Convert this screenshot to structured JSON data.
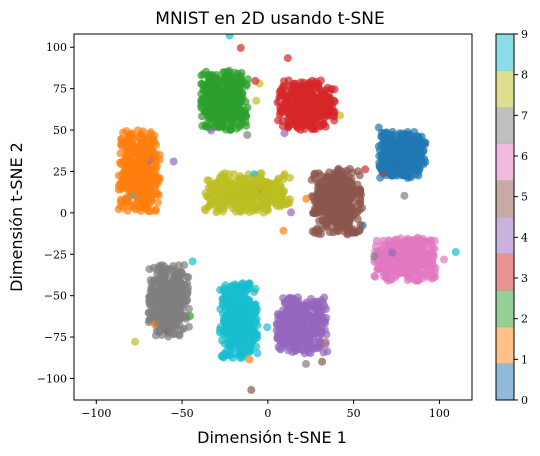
{
  "chart_data": {
    "type": "scatter",
    "title": "MNIST en 2D usando t-SNE",
    "xlabel": "Dimensión t-SNE 1",
    "ylabel": "Dimensión t-SNE 2",
    "xlim": [
      -113,
      119
    ],
    "ylim": [
      -113,
      108
    ],
    "xticks": [
      -100,
      -50,
      0,
      50,
      100
    ],
    "yticks": [
      -100,
      -75,
      -50,
      -25,
      0,
      25,
      50,
      75,
      100
    ],
    "grid": false,
    "legend": "none",
    "colormap": "tab10",
    "marker_alpha": 0.7,
    "colorbar": {
      "range": [
        0,
        9
      ],
      "ticks": [
        0,
        1,
        2,
        3,
        4,
        5,
        6,
        7,
        8,
        9
      ],
      "colors": [
        "#1f77b4",
        "#ff7f0e",
        "#2ca02c",
        "#d62728",
        "#9467bd",
        "#8c564b",
        "#e377c2",
        "#7f7f7f",
        "#bcbd22",
        "#17becf"
      ]
    },
    "clusters": [
      {
        "label": 0,
        "center": [
          78,
          35
        ],
        "spread": [
          14,
          14
        ],
        "color": "#1f77b4"
      },
      {
        "label": 1,
        "center": [
          -75,
          25
        ],
        "spread": [
          12,
          25
        ],
        "color": "#ff7f0e"
      },
      {
        "label": 2,
        "center": [
          -25,
          68
        ],
        "spread": [
          14,
          18
        ],
        "color": "#2ca02c"
      },
      {
        "label": 3,
        "center": [
          22,
          65
        ],
        "spread": [
          17,
          15
        ],
        "color": "#d62728"
      },
      {
        "label": 4,
        "center": [
          20,
          -68
        ],
        "spread": [
          15,
          17
        ],
        "color": "#9467bd"
      },
      {
        "label": 5,
        "center": [
          40,
          7
        ],
        "spread": [
          15,
          20
        ],
        "color": "#8c564b"
      },
      {
        "label": 6,
        "center": [
          80,
          -28
        ],
        "spread": [
          18,
          13
        ],
        "color": "#e377c2"
      },
      {
        "label": 7,
        "center": [
          -58,
          -53
        ],
        "spread": [
          12,
          22
        ],
        "color": "#7f7f7f"
      },
      {
        "label": 8,
        "center": [
          -12,
          12
        ],
        "spread": [
          25,
          12
        ],
        "color": "#bcbd22"
      },
      {
        "label": 9,
        "center": [
          -17,
          -65
        ],
        "spread": [
          11,
          23
        ],
        "color": "#17becf"
      }
    ]
  }
}
